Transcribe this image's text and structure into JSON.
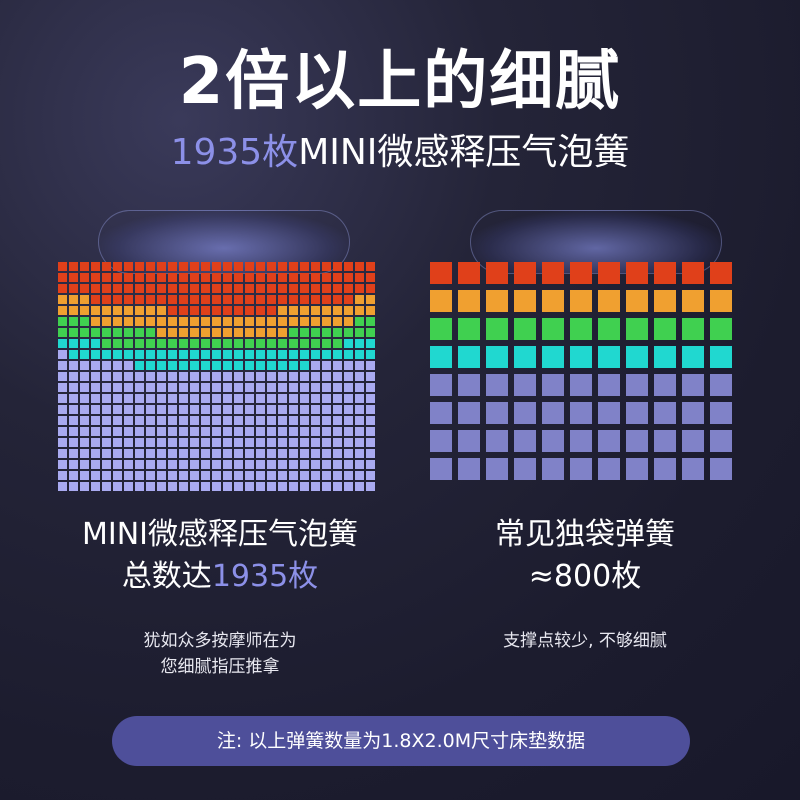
{
  "header": {
    "title": "2倍以上的细腻",
    "subtitle_count": "1935枚",
    "subtitle_rest": "MINI微感释压气泡簧"
  },
  "left": {
    "name_line1": "MINI微感释压气泡簧",
    "name_line2_prefix": "总数达",
    "name_line2_count": "1935枚",
    "desc_line1": "犹如众多按摩师在为",
    "desc_line2": "您细腻指压推拿"
  },
  "right": {
    "name_line1": "常见独袋弹簧",
    "name_line2": "≈800枚",
    "desc_line1": "支撑点较少, 不够细腻"
  },
  "note": "注: 以上弹簧数量为1.8X2.0M尺寸床垫数据",
  "colors": {
    "accent": "#8c90e8",
    "background": "#1c1c2e",
    "note_bar": "#4e4f9a",
    "cell_base": "#a9aaf0",
    "cell_base_right": "#8082c8",
    "heat_red": "#e0401a",
    "heat_orange": "#f0a030",
    "heat_green": "#40d050",
    "heat_cyan": "#20d8d0"
  }
}
